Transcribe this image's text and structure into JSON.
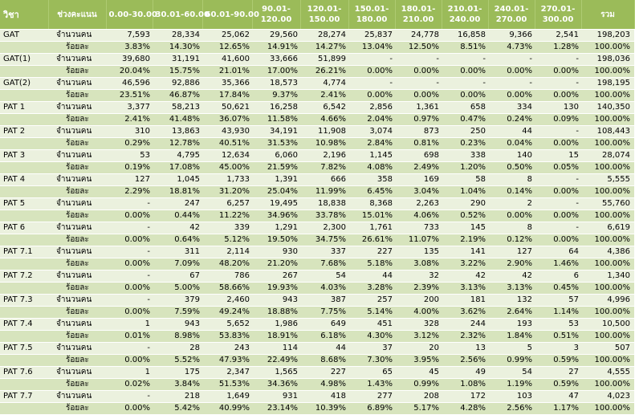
{
  "headers": [
    "วิชา",
    "ช่วงคะแนน",
    "0.00-30.00",
    "30.01-60.00",
    "60.01-90.00",
    "90.01-\n120.00",
    "120.01-\n150.00",
    "150.01-\n180.00",
    "180.01-\n210.00",
    "210.01-\n240.00",
    "240.01-\n270.00",
    "270.01-\n300.00",
    "รวม"
  ],
  "row_type_labels": {
    "count": "จำนวนคน",
    "percent": "ร้อยละ"
  },
  "subjects": [
    {
      "name": "GAT",
      "count": [
        "7,593",
        "28,334",
        "25,062",
        "29,560",
        "28,274",
        "25,837",
        "24,778",
        "16,858",
        "9,366",
        "2,541",
        "198,203"
      ],
      "percent": [
        "3.83%",
        "14.30%",
        "12.65%",
        "14.91%",
        "14.27%",
        "13.04%",
        "12.50%",
        "8.51%",
        "4.73%",
        "1.28%",
        "100.00%"
      ]
    },
    {
      "name": "GAT(1)",
      "count": [
        "39,680",
        "31,191",
        "41,600",
        "33,666",
        "51,899",
        "-",
        "-",
        "-",
        "-",
        "-",
        "198,036"
      ],
      "percent": [
        "20.04%",
        "15.75%",
        "21.01%",
        "17.00%",
        "26.21%",
        "0.00%",
        "0.00%",
        "0.00%",
        "0.00%",
        "0.00%",
        "100.00%"
      ]
    },
    {
      "name": "GAT(2)",
      "count": [
        "46,596",
        "92,886",
        "35,366",
        "18,573",
        "4,774",
        "-",
        "-",
        "-",
        "-",
        "-",
        "198,195"
      ],
      "percent": [
        "23.51%",
        "46.87%",
        "17.84%",
        "9.37%",
        "2.41%",
        "0.00%",
        "0.00%",
        "0.00%",
        "0.00%",
        "0.00%",
        "100.00%"
      ]
    },
    {
      "name": "PAT 1",
      "count": [
        "3,377",
        "58,213",
        "50,621",
        "16,258",
        "6,542",
        "2,856",
        "1,361",
        "658",
        "334",
        "130",
        "140,350"
      ],
      "percent": [
        "2.41%",
        "41.48%",
        "36.07%",
        "11.58%",
        "4.66%",
        "2.04%",
        "0.97%",
        "0.47%",
        "0.24%",
        "0.09%",
        "100.00%"
      ]
    },
    {
      "name": "PAT 2",
      "count": [
        "310",
        "13,863",
        "43,930",
        "34,191",
        "11,908",
        "3,074",
        "873",
        "250",
        "44",
        "-",
        "108,443"
      ],
      "percent": [
        "0.29%",
        "12.78%",
        "40.51%",
        "31.53%",
        "10.98%",
        "2.84%",
        "0.81%",
        "0.23%",
        "0.04%",
        "0.00%",
        "100.00%"
      ]
    },
    {
      "name": "PAT 3",
      "count": [
        "53",
        "4,795",
        "12,634",
        "6,060",
        "2,196",
        "1,145",
        "698",
        "338",
        "140",
        "15",
        "28,074"
      ],
      "percent": [
        "0.19%",
        "17.08%",
        "45.00%",
        "21.59%",
        "7.82%",
        "4.08%",
        "2.49%",
        "1.20%",
        "0.50%",
        "0.05%",
        "100.00%"
      ]
    },
    {
      "name": "PAT 4",
      "count": [
        "127",
        "1,045",
        "1,733",
        "1,391",
        "666",
        "358",
        "169",
        "58",
        "8",
        "-",
        "5,555"
      ],
      "percent": [
        "2.29%",
        "18.81%",
        "31.20%",
        "25.04%",
        "11.99%",
        "6.45%",
        "3.04%",
        "1.04%",
        "0.14%",
        "0.00%",
        "100.00%"
      ]
    },
    {
      "name": "PAT 5",
      "count": [
        "-",
        "247",
        "6,257",
        "19,495",
        "18,838",
        "8,368",
        "2,263",
        "290",
        "2",
        "-",
        "55,760"
      ],
      "percent": [
        "0.00%",
        "0.44%",
        "11.22%",
        "34.96%",
        "33.78%",
        "15.01%",
        "4.06%",
        "0.52%",
        "0.00%",
        "0.00%",
        "100.00%"
      ]
    },
    {
      "name": "PAT 6",
      "count": [
        "-",
        "42",
        "339",
        "1,291",
        "2,300",
        "1,761",
        "733",
        "145",
        "8",
        "-",
        "6,619"
      ],
      "percent": [
        "0.00%",
        "0.64%",
        "5.12%",
        "19.50%",
        "34.75%",
        "26.61%",
        "11.07%",
        "2.19%",
        "0.12%",
        "0.00%",
        "100.00%"
      ]
    },
    {
      "name": "PAT 7.1",
      "count": [
        "-",
        "311",
        "2,114",
        "930",
        "337",
        "227",
        "135",
        "141",
        "127",
        "64",
        "4,386"
      ],
      "percent": [
        "0.00%",
        "7.09%",
        "48.20%",
        "21.20%",
        "7.68%",
        "5.18%",
        "3.08%",
        "3.22%",
        "2.90%",
        "1.46%",
        "100.00%"
      ]
    },
    {
      "name": "PAT 7.2",
      "count": [
        "-",
        "67",
        "786",
        "267",
        "54",
        "44",
        "32",
        "42",
        "42",
        "6",
        "1,340"
      ],
      "percent": [
        "0.00%",
        "5.00%",
        "58.66%",
        "19.93%",
        "4.03%",
        "3.28%",
        "2.39%",
        "3.13%",
        "3.13%",
        "0.45%",
        "100.00%"
      ]
    },
    {
      "name": "PAT 7.3",
      "count": [
        "-",
        "379",
        "2,460",
        "943",
        "387",
        "257",
        "200",
        "181",
        "132",
        "57",
        "4,996"
      ],
      "percent": [
        "0.00%",
        "7.59%",
        "49.24%",
        "18.88%",
        "7.75%",
        "5.14%",
        "4.00%",
        "3.62%",
        "2.64%",
        "1.14%",
        "100.00%"
      ]
    },
    {
      "name": "PAT 7.4",
      "count": [
        "1",
        "943",
        "5,652",
        "1,986",
        "649",
        "451",
        "328",
        "244",
        "193",
        "53",
        "10,500"
      ],
      "percent": [
        "0.01%",
        "8.98%",
        "53.83%",
        "18.91%",
        "6.18%",
        "4.30%",
        "3.12%",
        "2.32%",
        "1.84%",
        "0.51%",
        "100.00%"
      ]
    },
    {
      "name": "PAT 7.5",
      "count": [
        "-",
        "28",
        "243",
        "114",
        "44",
        "37",
        "20",
        "13",
        "5",
        "3",
        "507"
      ],
      "percent": [
        "0.00%",
        "5.52%",
        "47.93%",
        "22.49%",
        "8.68%",
        "7.30%",
        "3.95%",
        "2.56%",
        "0.99%",
        "0.59%",
        "100.00%"
      ]
    },
    {
      "name": "PAT 7.6",
      "count": [
        "1",
        "175",
        "2,347",
        "1,565",
        "227",
        "65",
        "45",
        "49",
        "54",
        "27",
        "4,555"
      ],
      "percent": [
        "0.02%",
        "3.84%",
        "51.53%",
        "34.36%",
        "4.98%",
        "1.43%",
        "0.99%",
        "1.08%",
        "1.19%",
        "0.59%",
        "100.00%"
      ]
    },
    {
      "name": "PAT 7.7",
      "count": [
        "-",
        "218",
        "1,649",
        "931",
        "418",
        "277",
        "208",
        "172",
        "103",
        "47",
        "4,023"
      ],
      "percent": [
        "0.00%",
        "5.42%",
        "40.99%",
        "23.14%",
        "10.39%",
        "6.89%",
        "5.17%",
        "4.28%",
        "2.56%",
        "1.17%",
        "100.00%"
      ]
    }
  ]
}
